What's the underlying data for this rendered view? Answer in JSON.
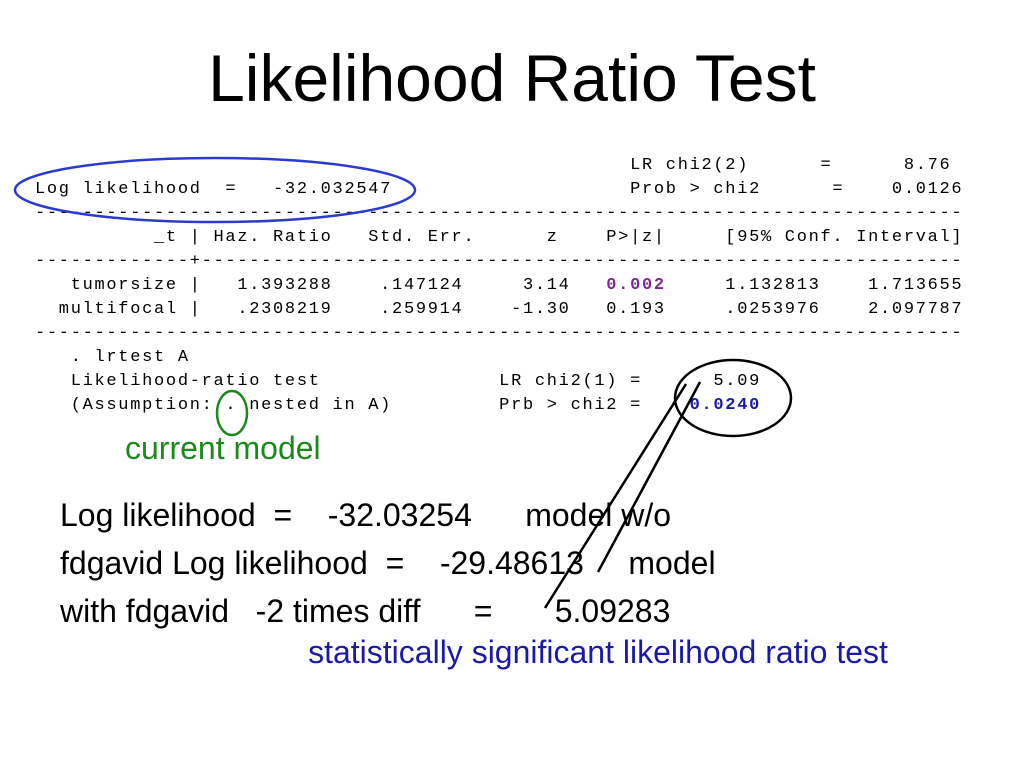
{
  "title": "Likelihood Ratio Test",
  "output": [
    [
      "                                                  LR chi2(2)      =      8.76"
    ],
    [
      "Log likelihood  =   -32.032547                    Prob > chi2      =    0.0126"
    ],
    [
      "------------------------------------------------------------------------------"
    ],
    [
      "          _t | Haz. Ratio   Std. Err.      z    P>|z|     [95% Conf. Interval]"
    ],
    [
      "-------------+----------------------------------------------------------------"
    ],
    [
      "   tumorsize |   1.393288    .147124     3.14   ",
      "0.002",
      "     1.132813    1.713655"
    ],
    [
      "  multifocal |   .2308219    .259914    -1.30   0.193     .0253976    2.097787"
    ],
    [
      "------------------------------------------------------------------------------"
    ],
    [
      "   . lrtest A"
    ],
    [
      "   Likelihood-ratio test               LR chi2(1) =      5.09"
    ],
    [
      "   (Assumption: . nested in A)         Prb > chi2 =    ",
      "0.0240"
    ]
  ],
  "current_model_label": "current model",
  "body_lines": [
    "Log likelihood  =    -32.03254      model w/o",
    "fdgavid Log likelihood  =    -29.48613     model",
    "with fdgavid   -2 times diff      =       5.09283"
  ],
  "conclusion": "statistically significant likelihood ratio test"
}
